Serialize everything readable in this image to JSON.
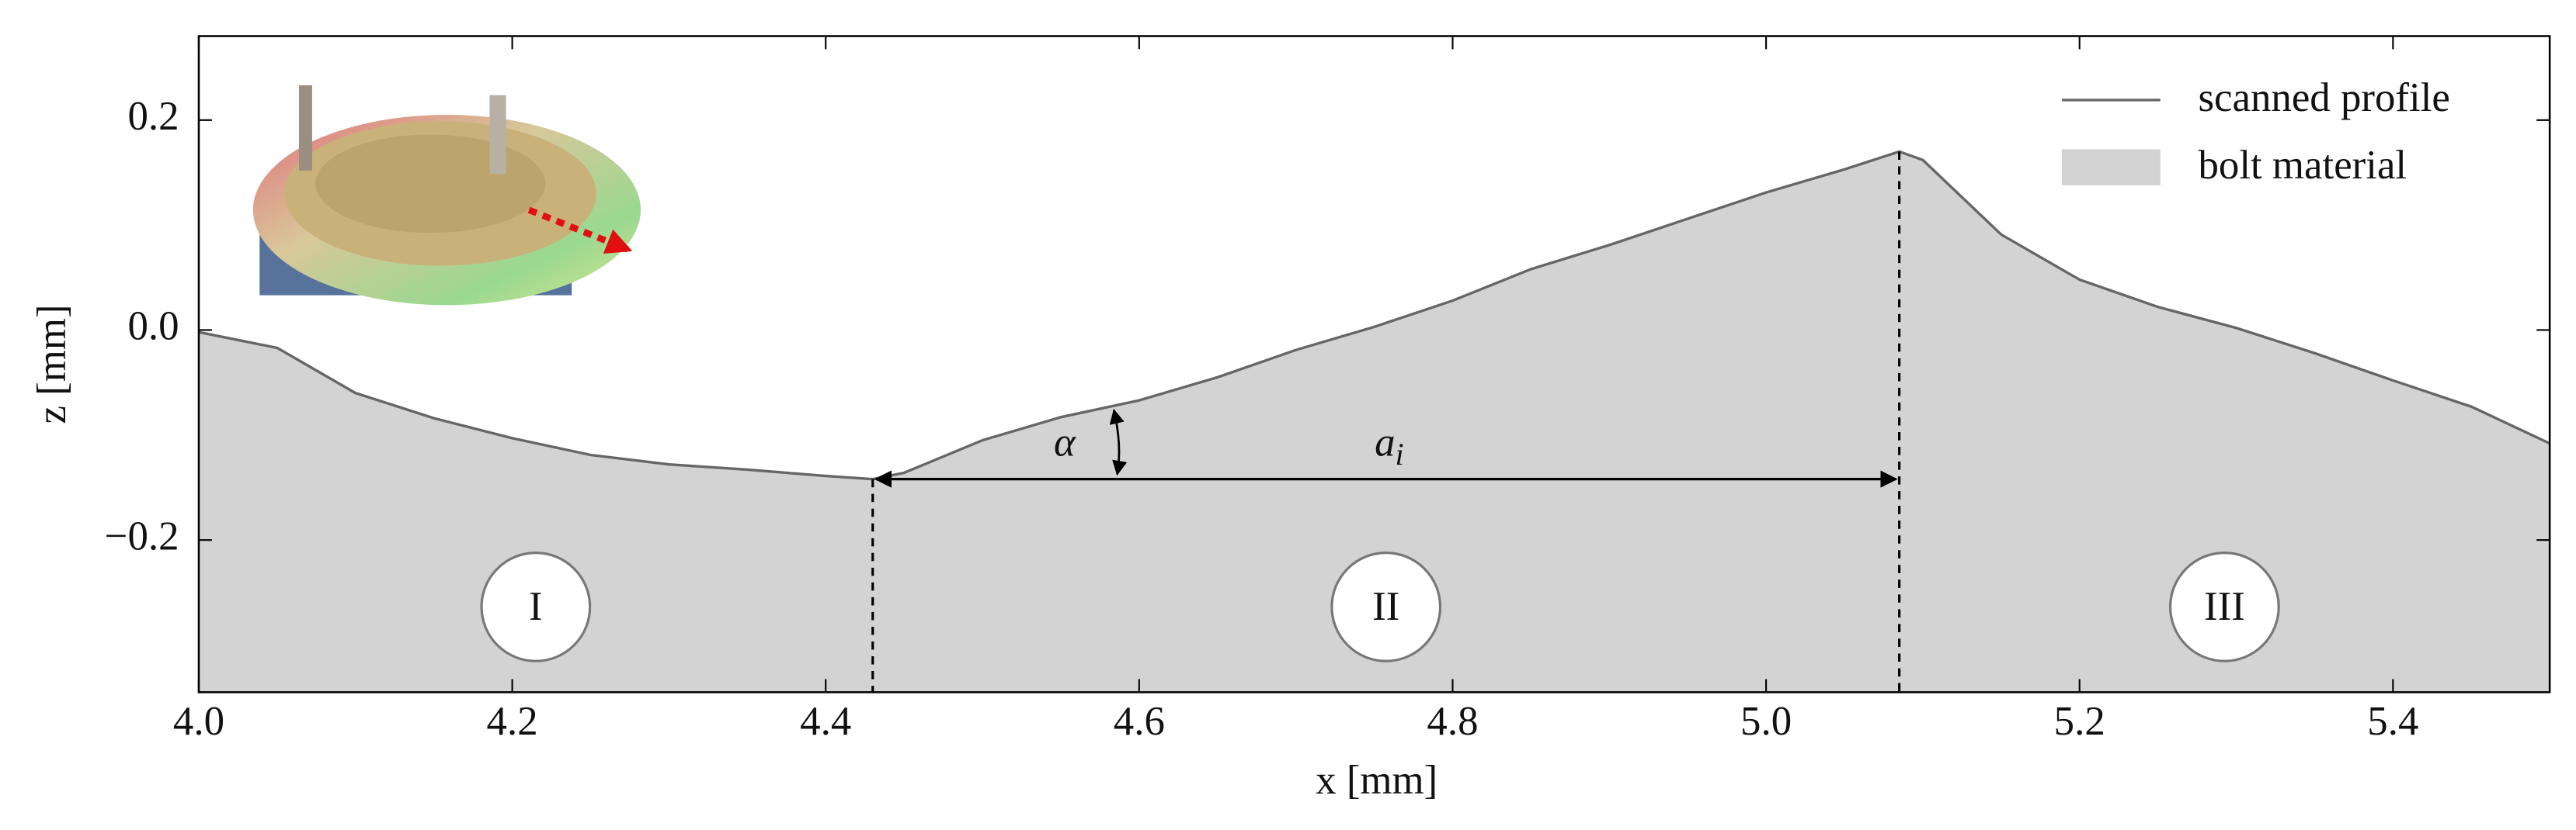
{
  "chart_data": {
    "type": "area",
    "xlabel": "x [mm]",
    "ylabel": "z [mm]",
    "x": [
      4.0,
      4.05,
      4.1,
      4.15,
      4.2,
      4.25,
      4.3,
      4.35,
      4.4,
      4.43,
      4.45,
      4.5,
      4.55,
      4.6,
      4.65,
      4.7,
      4.75,
      4.8,
      4.85,
      4.9,
      4.95,
      5.0,
      5.05,
      5.085,
      5.1,
      5.15,
      5.2,
      5.25,
      5.3,
      5.35,
      5.4,
      5.45,
      5.5
    ],
    "series": [
      {
        "name": "scanned profile",
        "color": "#666666",
        "values": [
          -0.002,
          -0.017,
          -0.06,
          -0.084,
          -0.103,
          -0.119,
          -0.128,
          -0.133,
          -0.139,
          -0.142,
          -0.136,
          -0.105,
          -0.083,
          -0.067,
          -0.045,
          -0.019,
          0.003,
          0.028,
          0.058,
          0.081,
          0.106,
          0.131,
          0.153,
          0.17,
          0.162,
          0.091,
          0.048,
          0.022,
          0.002,
          -0.022,
          -0.048,
          -0.073,
          -0.108
        ]
      }
    ],
    "fill": {
      "name": "bolt material",
      "color": "#d3d3d3"
    },
    "xlim": [
      4.0,
      5.5
    ],
    "xticks": [
      {
        "value": 4.0,
        "label": "4.0"
      },
      4.2,
      4.4,
      4.6,
      4.8,
      {
        "value": 5.0,
        "label": "5.0"
      },
      5.2,
      5.4
    ],
    "ylim": [
      -0.345,
      0.28
    ],
    "yticks": [
      {
        "value": -0.2,
        "label": "−0.2"
      },
      {
        "value": 0.0,
        "label": "0.0"
      },
      0.2
    ],
    "legend": "upper right",
    "annotations": {
      "angle": "α",
      "length": "a",
      "length_sub": "i"
    },
    "regions": [
      "I",
      "II",
      "III"
    ]
  }
}
